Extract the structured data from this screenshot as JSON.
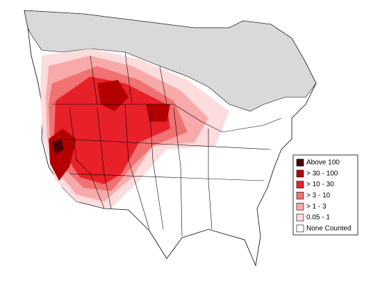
{
  "legend": {
    "items": [
      {
        "label": "Above 100",
        "color": "#4a0000"
      },
      {
        "label": "> 30 - 100",
        "color": "#b30000"
      },
      {
        "label": "> 10 - 30",
        "color": "#e8202a"
      },
      {
        "label": "> 3 - 10",
        "color": "#f07272"
      },
      {
        "label": "> 1 - 3",
        "color": "#f8aaaa"
      },
      {
        "label": "0.05 - 1",
        "color": "#fcdcdc"
      },
      {
        "label": "None Counted",
        "color": "#ffffff"
      }
    ]
  }
}
